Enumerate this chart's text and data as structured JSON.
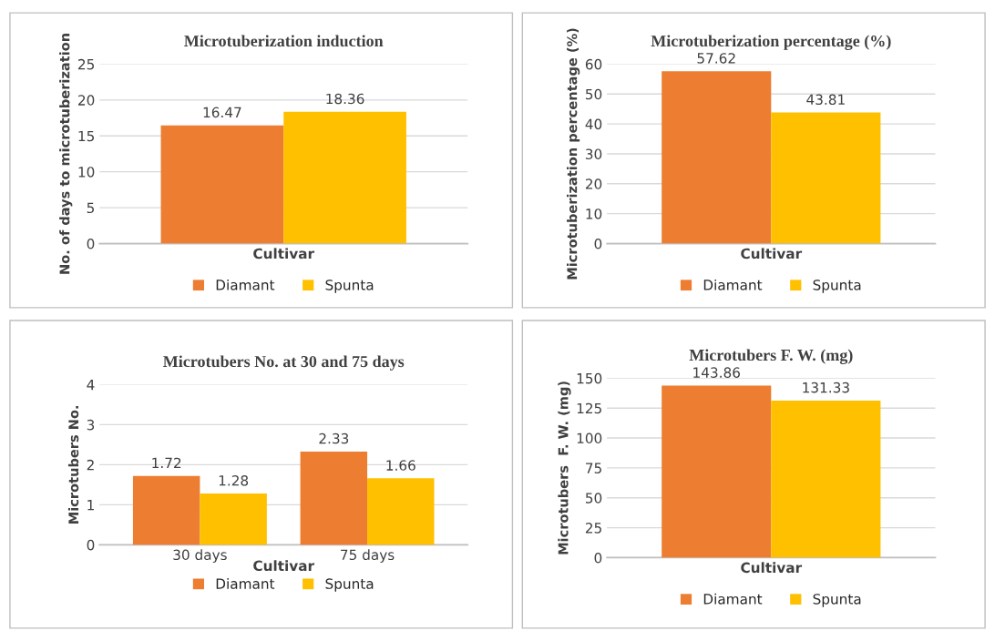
{
  "chart_data": [
    {
      "type": "bar",
      "title": "Microtuberization induction",
      "ylabel": "No. of days to microtuberization",
      "categories": [
        "Cultivar"
      ],
      "series": [
        {
          "name": "Diamant",
          "color": "#ed7d31",
          "values": [
            16.47
          ]
        },
        {
          "name": "Spunta",
          "color": "#ffc000",
          "values": [
            18.36
          ]
        }
      ],
      "ylim": [
        0,
        25
      ],
      "yticks": [
        0,
        5,
        10,
        15,
        20,
        25
      ],
      "grid": "y",
      "legend": "bottom",
      "data_labels": true
    },
    {
      "type": "bar",
      "title": "Microtuberization percentage (%)",
      "ylabel": "Microtuberization percentage (%)",
      "categories": [
        "Cultivar"
      ],
      "series": [
        {
          "name": "Diamant",
          "color": "#ed7d31",
          "values": [
            57.62
          ]
        },
        {
          "name": "Spunta",
          "color": "#ffc000",
          "values": [
            43.81
          ]
        }
      ],
      "ylim": [
        0,
        60
      ],
      "yticks": [
        0,
        10,
        20,
        30,
        40,
        50,
        60
      ],
      "grid": "y",
      "legend": "bottom",
      "data_labels": true
    },
    {
      "type": "bar",
      "title": "Microtubers No. at 30 and 75 days",
      "ylabel": "Microtubers No.",
      "xlabel": "Cultivar",
      "categories": [
        "30 days",
        "75 days"
      ],
      "series": [
        {
          "name": "Diamant",
          "color": "#ed7d31",
          "values": [
            1.72,
            2.33
          ]
        },
        {
          "name": "Spunta",
          "color": "#ffc000",
          "values": [
            1.28,
            1.66
          ]
        }
      ],
      "ylim": [
        0,
        4
      ],
      "yticks": [
        0,
        1,
        2,
        3,
        4
      ],
      "grid": "y",
      "legend": "bottom",
      "data_labels": true
    },
    {
      "type": "bar",
      "title": "Microtubers F. W. (mg)",
      "ylabel": "Microtubers  F. W. (mg)",
      "categories": [
        "Cultivar"
      ],
      "series": [
        {
          "name": "Diamant",
          "color": "#ed7d31",
          "values": [
            143.86
          ]
        },
        {
          "name": "Spunta",
          "color": "#ffc000",
          "values": [
            131.33
          ]
        }
      ],
      "ylim": [
        0,
        150
      ],
      "yticks": [
        0,
        25,
        50,
        75,
        100,
        125,
        150
      ],
      "grid": "y",
      "legend": "bottom",
      "data_labels": true
    }
  ]
}
